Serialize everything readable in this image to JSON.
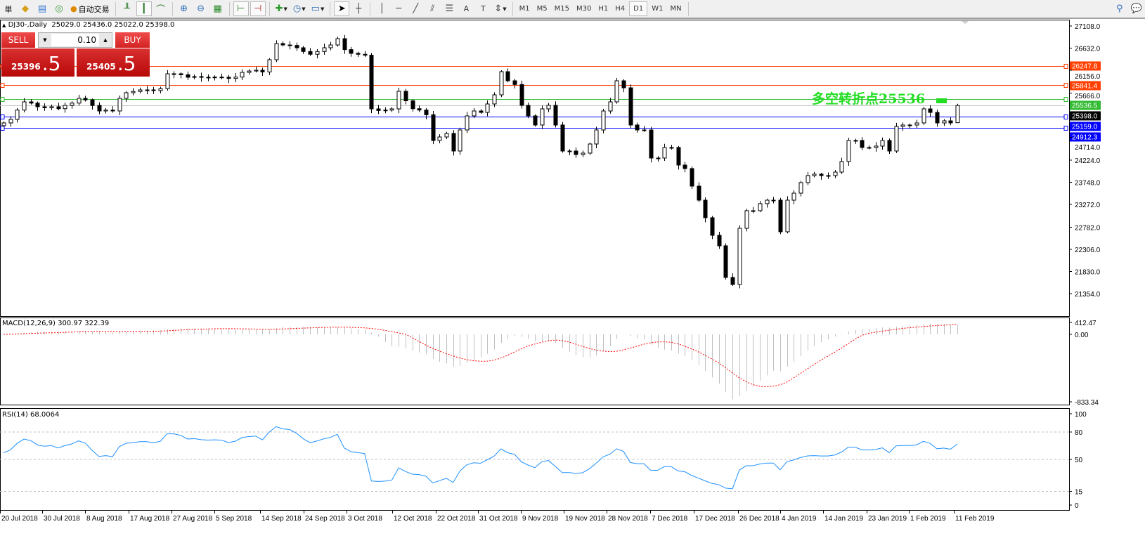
{
  "toolbar": {
    "partial_label": "単",
    "autotrade_label": "自动交易",
    "timeframes": [
      "M1",
      "M5",
      "M15",
      "M30",
      "H1",
      "H4",
      "D1",
      "W1",
      "MN"
    ],
    "active_timeframe": "D1"
  },
  "chart_header": {
    "symbol": "DJ30-,Daily",
    "ohlc": "25029.0 25436.0 25022.0 25398.0"
  },
  "trade_panel": {
    "sell_label": "SELL",
    "buy_label": "BUY",
    "lot": "0.10",
    "sell_price_main": "25396",
    "sell_price_frac": ".5",
    "buy_price_main": "25405",
    "buy_price_frac": ".5"
  },
  "annotation": {
    "text": "多空转折点25536",
    "color": "#22dd22"
  },
  "price_axis": [
    "27108.0",
    "26632.0",
    "26156.0",
    "25666.0",
    "24714.0",
    "24224.0",
    "23748.0",
    "23272.0",
    "22782.0",
    "22306.0",
    "21830.0",
    "21354.0"
  ],
  "levels": [
    {
      "label": "26247.8",
      "value": 26247.8,
      "color": "#ff4000"
    },
    {
      "label": "25841.4",
      "value": 25841.4,
      "color": "#ff4000"
    },
    {
      "label": "25536.5",
      "value": 25536.5,
      "color": "#33bb33"
    },
    {
      "label": "25398.0",
      "value": 25398.0,
      "color": "#000000"
    },
    {
      "label": "25159.0",
      "value": 25159.0,
      "color": "#0000ff"
    },
    {
      "label": "24912.3",
      "value": 24912.3,
      "color": "#0000ff"
    }
  ],
  "macd": {
    "title": "MACD(12,26,9) 300.97 322.39",
    "axis": [
      "412.47",
      "0.00",
      "-833.34"
    ]
  },
  "rsi": {
    "title": "RSI(14) 68.0064",
    "axis": [
      "100",
      "80",
      "50",
      "15",
      "0"
    ]
  },
  "date_axis": [
    "20 Jul 2018",
    "30 Jul 2018",
    "8 Aug 2018",
    "17 Aug 2018",
    "27 Aug 2018",
    "5 Sep 2018",
    "14 Sep 2018",
    "24 Sep 2018",
    "3 Oct 2018",
    "12 Oct 2018",
    "22 Oct 2018",
    "31 Oct 2018",
    "9 Nov 2018",
    "19 Nov 2018",
    "28 Nov 2018",
    "7 Dec 2018",
    "17 Dec 2018",
    "26 Dec 2018",
    "4 Jan 2019",
    "14 Jan 2019",
    "23 Jan 2019",
    "1 Feb 2019",
    "11 Feb 2019"
  ],
  "chart_data": {
    "type": "candlestick",
    "ylim": [
      21354,
      27108
    ],
    "last_bar": {
      "open": 25029.0,
      "high": 25436.0,
      "low": 25022.0,
      "close": 25398.0
    },
    "close": [
      25024,
      25100,
      25300,
      25477,
      25450,
      25372,
      25350,
      25372,
      25330,
      25400,
      25450,
      25553,
      25520,
      25400,
      25281,
      25300,
      25281,
      25553,
      25674,
      25700,
      25734,
      25734,
      25720,
      25760,
      26081,
      26081,
      26060,
      26006,
      26020,
      26006,
      26000,
      26010,
      26006,
      25980,
      26010,
      26111,
      26140,
      26157,
      26120,
      26383,
      26731,
      26700,
      26690,
      26640,
      26560,
      26500,
      26560,
      26640,
      26700,
      26836,
      26600,
      26520,
      26500,
      26480,
      25326,
      25290,
      25300,
      25326,
      25704,
      25500,
      25330,
      25300,
      25200,
      24647,
      24722,
      24798,
      24420,
      24873,
      25175,
      25281,
      25250,
      25432,
      25628,
      26126,
      25930,
      25850,
      25402,
      25175,
      24979,
      25326,
      25402,
      24979,
      24420,
      24420,
      24345,
      24375,
      24571,
      24873,
      25281,
      25477,
      25930,
      25779,
      24979,
      24873,
      24873,
      24269,
      24269,
      24496,
      24496,
      24118,
      24043,
      23665,
      23363,
      22986,
      22608,
      22382,
      21702,
      21551,
      22759,
      23137,
      23137,
      23288,
      23363,
      23363,
      22684,
      23363,
      23514,
      23741,
      23892,
      23922,
      23892,
      23892,
      23967,
      24194,
      24647,
      24647,
      24496,
      24496,
      24526,
      24647,
      24420,
      24949,
      24979,
      24979,
      25024,
      25326,
      25250,
      25024,
      25069,
      25024,
      25398
    ]
  }
}
